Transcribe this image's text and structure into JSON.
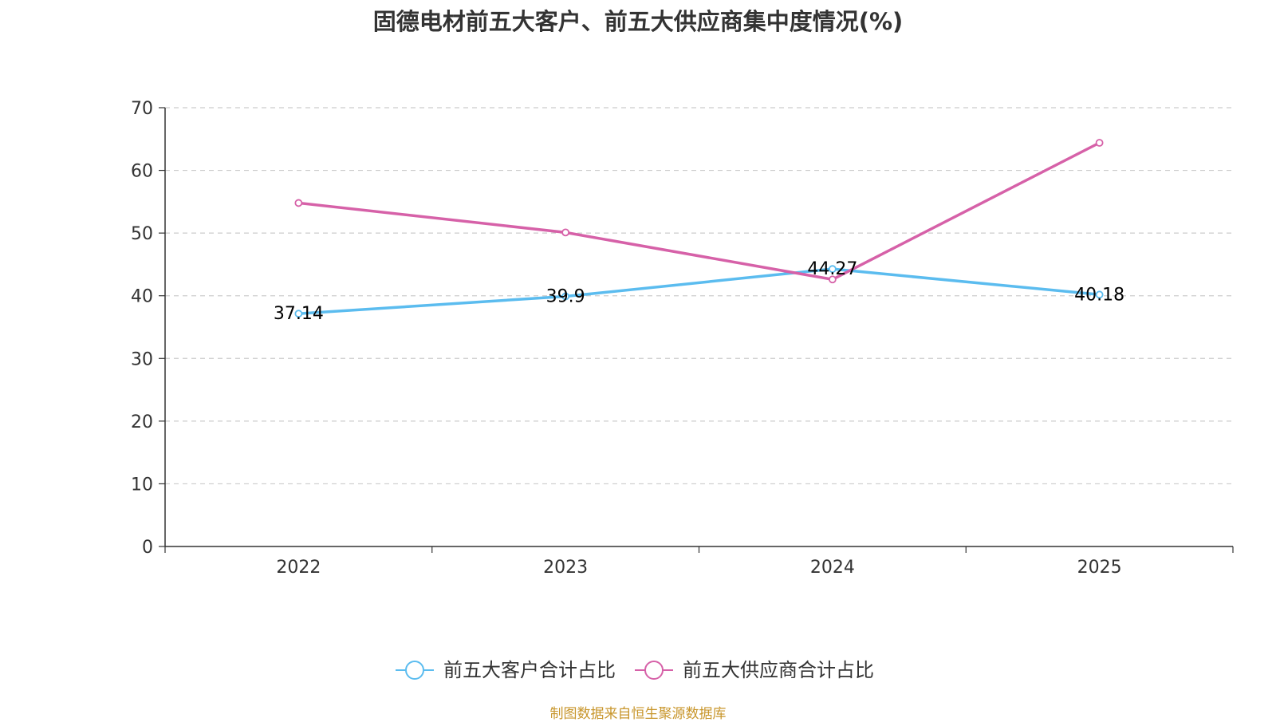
{
  "chart_data": {
    "type": "line",
    "title": "固德电材前五大客户、前五大供应商集中度情况(%)",
    "categories": [
      "2022",
      "2023",
      "2024",
      "2025"
    ],
    "ylim": [
      0,
      70
    ],
    "yticks": [
      0,
      10,
      20,
      30,
      40,
      50,
      60,
      70
    ],
    "grid": true,
    "legend_position": "bottom-center",
    "series": [
      {
        "name": "前五大客户合计占比",
        "color": "#5bbcef",
        "values": [
          37.14,
          39.9,
          44.27,
          40.18
        ],
        "show_labels": true
      },
      {
        "name": "前五大供应商合计占比",
        "color": "#d661a8",
        "values": [
          54.8,
          50.1,
          42.6,
          64.4
        ],
        "show_labels": false
      }
    ]
  },
  "footer": {
    "source": "制图数据来自恒生聚源数据库"
  }
}
